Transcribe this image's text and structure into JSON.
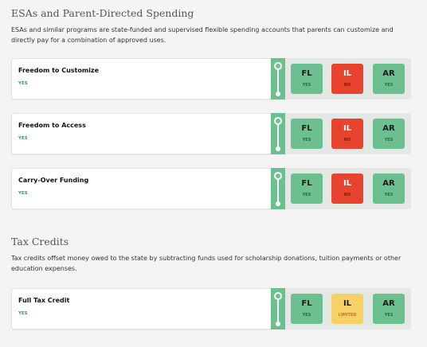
{
  "sections": [
    {
      "title": "ESAs and Parent-Directed Spending",
      "description": "ESAs and similar programs are state-funded and supervised flexible spending accounts that parents can customize and directly pay for a combination of approved uses.",
      "rows": [
        {
          "name": "Freedom to Customize",
          "value": "YES",
          "states": [
            {
              "abbr": "FL",
              "status": "YES"
            },
            {
              "abbr": "IL",
              "status": "NO"
            },
            {
              "abbr": "AR",
              "status": "YES"
            }
          ]
        },
        {
          "name": "Freedom to Access",
          "value": "YES",
          "states": [
            {
              "abbr": "FL",
              "status": "YES"
            },
            {
              "abbr": "IL",
              "status": "NO"
            },
            {
              "abbr": "AR",
              "status": "YES"
            }
          ]
        },
        {
          "name": "Carry-Over Funding",
          "value": "YES",
          "states": [
            {
              "abbr": "FL",
              "status": "YES"
            },
            {
              "abbr": "IL",
              "status": "NO"
            },
            {
              "abbr": "AR",
              "status": "YES"
            }
          ]
        }
      ]
    },
    {
      "title": "Tax Credits",
      "description": "Tax credits offset money owed to the state by subtracting funds used for scholarship donations, tuition payments or other education expenses.",
      "rows": [
        {
          "name": "Full Tax Credit",
          "value": "YES",
          "states": [
            {
              "abbr": "FL",
              "status": "YES"
            },
            {
              "abbr": "IL",
              "status": "LIMITED"
            },
            {
              "abbr": "AR",
              "status": "YES"
            }
          ]
        }
      ]
    }
  ],
  "icons": {
    "timeline": "timeline-slider-icon"
  },
  "colors": {
    "yes": "#6cc08f",
    "no": "#e8432e",
    "limited": "#f5d166",
    "strip": "#6cc08f"
  }
}
